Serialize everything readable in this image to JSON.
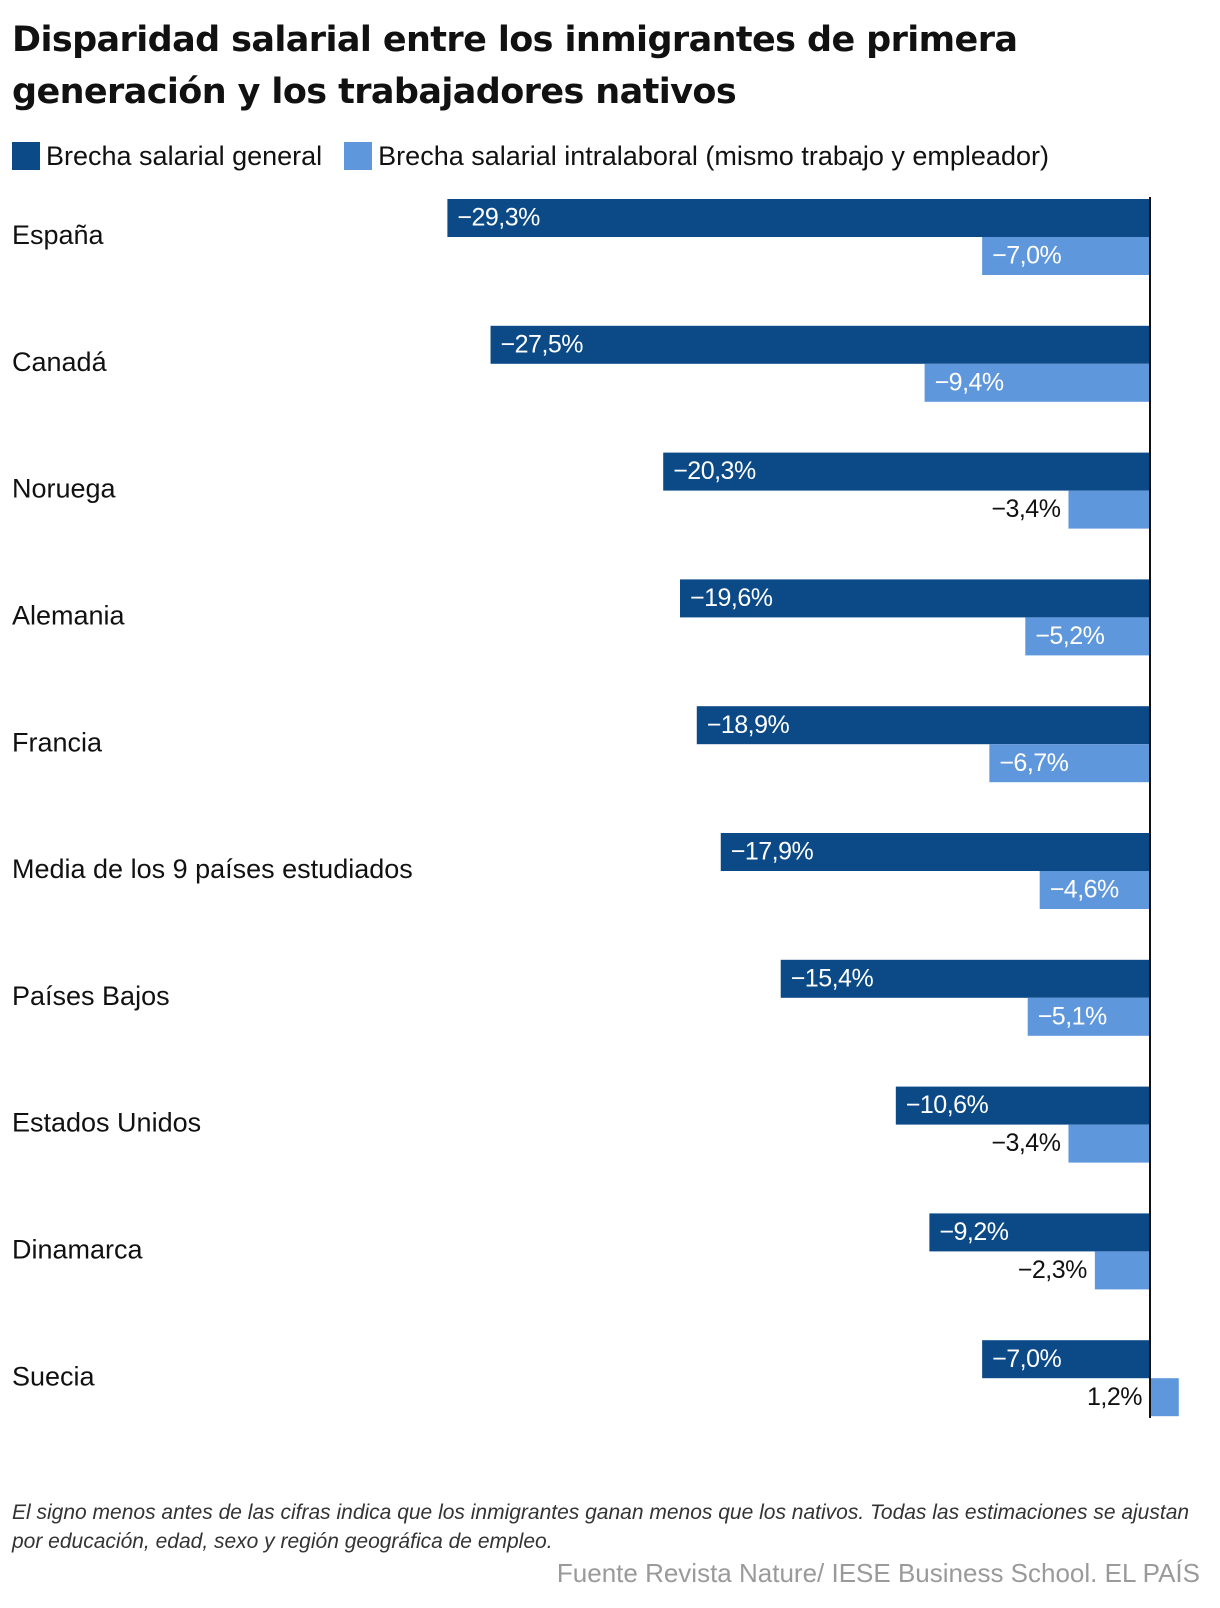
{
  "title": "Disparidad salarial entre los inmigrantes de primera generación y los trabajadores nativos",
  "legend": [
    {
      "label": "Brecha salarial general",
      "color": "#0b4a87"
    },
    {
      "label": "Brecha salarial intralaboral (mismo trabajo y empleador)",
      "color": "#5f97dc"
    }
  ],
  "note": "El signo menos antes de las cifras indica que los inmigrantes ganan menos que los nativos. Todas las estimaciones se ajustan por educación, edad, sexo y región geográfica de empleo.",
  "source": "Fuente Revista Nature/ IESE Business School. EL PAÍS",
  "chart_data": {
    "type": "bar",
    "orientation": "horizontal",
    "unit": "%",
    "categories": [
      "España",
      "Canadá",
      "Noruega",
      "Alemania",
      "Francia",
      "Media de los 9 países estudiados",
      "Países Bajos",
      "Estados Unidos",
      "Dinamarca",
      "Suecia"
    ],
    "series": [
      {
        "name": "Brecha salarial general",
        "color": "#0b4a87",
        "values": [
          -29.3,
          -27.5,
          -20.3,
          -19.6,
          -18.9,
          -17.9,
          -15.4,
          -10.6,
          -9.2,
          -7.0
        ],
        "labels": [
          "−29,3%",
          "−27,5%",
          "−20,3%",
          "−19,6%",
          "−18,9%",
          "−17,9%",
          "−15,4%",
          "−10,6%",
          "−9,2%",
          "−7,0%"
        ]
      },
      {
        "name": "Brecha salarial intralaboral (mismo trabajo y empleador)",
        "color": "#5f97dc",
        "values": [
          -7.0,
          -9.4,
          -3.4,
          -5.2,
          -6.7,
          -4.6,
          -5.1,
          -3.4,
          -2.3,
          1.2
        ],
        "labels": [
          "−7,0%",
          "−9,4%",
          "−3,4%",
          "−5,2%",
          "−6,7%",
          "−4,6%",
          "−5,1%",
          "−3,4%",
          "−2,3%",
          "1,2%"
        ]
      }
    ],
    "xlim": [
      -29.3,
      1.2
    ],
    "grid": false,
    "legend_position": "top-left"
  }
}
